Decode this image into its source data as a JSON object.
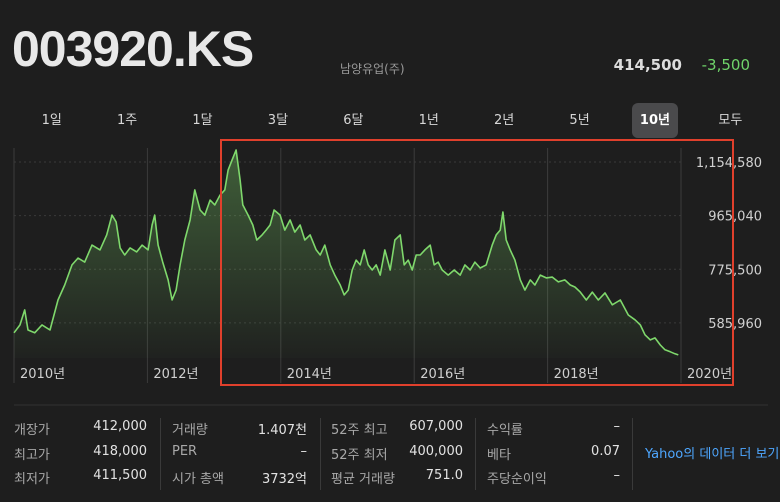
{
  "header": {
    "symbol": "003920.KS",
    "company": "남양유업(주)",
    "price": "414,500",
    "change": "-3,500"
  },
  "tabs": [
    "1일",
    "1주",
    "1달",
    "3달",
    "6달",
    "1년",
    "2년",
    "5년",
    "10년",
    "모두"
  ],
  "active_tab": 8,
  "chart_data": {
    "type": "line",
    "color": "#7fd86c",
    "grid": true,
    "xlim": [
      2010,
      2020
    ],
    "xticks": [
      {
        "value": 2010,
        "label": "2010년"
      },
      {
        "value": 2012,
        "label": "2012년"
      },
      {
        "value": 2014,
        "label": "2014년"
      },
      {
        "value": 2016,
        "label": "2016년"
      },
      {
        "value": 2018,
        "label": "2018년"
      },
      {
        "value": 2020,
        "label": "2020년"
      }
    ],
    "ylim": [
      462000,
      1204000
    ],
    "yticks": [
      {
        "value": 585960,
        "label": "585,960"
      },
      {
        "value": 775500,
        "label": "775,500"
      },
      {
        "value": 965040,
        "label": "965,040"
      },
      {
        "value": 1154580,
        "label": "1,154,580"
      }
    ],
    "x": [
      2010.0,
      2010.09,
      2010.16,
      2010.21,
      2010.31,
      2010.42,
      2010.54,
      2010.66,
      2010.76,
      2010.87,
      2010.96,
      2011.06,
      2011.17,
      2011.29,
      2011.39,
      2011.47,
      2011.53,
      2011.59,
      2011.66,
      2011.74,
      2011.84,
      2011.92,
      2012.01,
      2012.07,
      2012.11,
      2012.16,
      2012.23,
      2012.31,
      2012.37,
      2012.43,
      2012.49,
      2012.56,
      2012.64,
      2012.71,
      2012.79,
      2012.86,
      2012.94,
      2013.01,
      2013.09,
      2013.16,
      2013.21,
      2013.27,
      2013.33,
      2013.39,
      2013.43,
      2013.51,
      2013.58,
      2013.64,
      2013.72,
      2013.78,
      2013.84,
      2013.9,
      2013.99,
      2014.06,
      2014.14,
      2014.21,
      2014.29,
      2014.36,
      2014.44,
      2014.53,
      2014.59,
      2014.66,
      2014.74,
      2014.81,
      2014.89,
      2014.95,
      2015.01,
      2015.07,
      2015.13,
      2015.19,
      2015.25,
      2015.31,
      2015.37,
      2015.43,
      2015.49,
      2015.56,
      2015.64,
      2015.71,
      2015.79,
      2015.85,
      2015.91,
      2015.97,
      2016.03,
      2016.09,
      2016.16,
      2016.24,
      2016.3,
      2016.36,
      2016.42,
      2016.51,
      2016.6,
      2016.69,
      2016.76,
      2016.84,
      2016.91,
      2016.99,
      2017.08,
      2017.17,
      2017.23,
      2017.29,
      2017.33,
      2017.38,
      2017.44,
      2017.51,
      2017.59,
      2017.66,
      2017.74,
      2017.81,
      2017.89,
      2017.98,
      2018.07,
      2018.16,
      2018.26,
      2018.34,
      2018.41,
      2018.49,
      2018.58,
      2018.67,
      2018.76,
      2018.86,
      2018.97,
      2019.09,
      2019.21,
      2019.31,
      2019.39,
      2019.46,
      2019.54,
      2019.61,
      2019.69,
      2019.76,
      2019.84,
      2019.91,
      2019.96
    ],
    "values": [
      551000,
      579000,
      632000,
      561000,
      551000,
      579000,
      561000,
      667000,
      720000,
      791000,
      815000,
      801000,
      861000,
      844000,
      897000,
      967000,
      943000,
      851000,
      826000,
      851000,
      837000,
      861000,
      844000,
      932000,
      967000,
      861000,
      801000,
      738000,
      667000,
      702000,
      791000,
      879000,
      950000,
      1056000,
      985000,
      967000,
      1020000,
      1003000,
      1038000,
      1056000,
      1126000,
      1162000,
      1197000,
      1091000,
      1003000,
      967000,
      932000,
      879000,
      897000,
      914000,
      932000,
      985000,
      967000,
      914000,
      950000,
      907000,
      932000,
      879000,
      897000,
      844000,
      826000,
      861000,
      791000,
      755000,
      720000,
      685000,
      702000,
      773000,
      808000,
      791000,
      844000,
      791000,
      773000,
      791000,
      755000,
      844000,
      773000,
      879000,
      897000,
      791000,
      808000,
      773000,
      826000,
      826000,
      844000,
      861000,
      791000,
      801000,
      773000,
      755000,
      773000,
      755000,
      791000,
      773000,
      801000,
      780000,
      791000,
      861000,
      897000,
      914000,
      978000,
      879000,
      844000,
      808000,
      738000,
      702000,
      738000,
      720000,
      755000,
      745000,
      748000,
      731000,
      738000,
      720000,
      713000,
      695000,
      667000,
      695000,
      667000,
      692000,
      650000,
      667000,
      614000,
      597000,
      579000,
      544000,
      526000,
      533000,
      508000,
      491000,
      484000,
      477000,
      473000
    ]
  },
  "stats": [
    [
      {
        "label": "개장가",
        "value": "412,000"
      },
      {
        "label": "최고가",
        "value": "418,000"
      },
      {
        "label": "최저가",
        "value": "411,500"
      }
    ],
    [
      {
        "label": "거래량",
        "value": "1.407천"
      },
      {
        "label": "PER",
        "value": "–"
      },
      {
        "label": "시가 총액",
        "value": "3732억"
      }
    ],
    [
      {
        "label": "52주 최고",
        "value": "607,000"
      },
      {
        "label": "52주 최저",
        "value": "400,000"
      },
      {
        "label": "평균 거래량",
        "value": "751.0"
      }
    ],
    [
      {
        "label": "수익률",
        "value": "–"
      },
      {
        "label": "베타",
        "value": "0.07"
      },
      {
        "label": "주당순이익",
        "value": "–"
      }
    ]
  ],
  "more_link": "Yahoo의 데이터 더 보기"
}
